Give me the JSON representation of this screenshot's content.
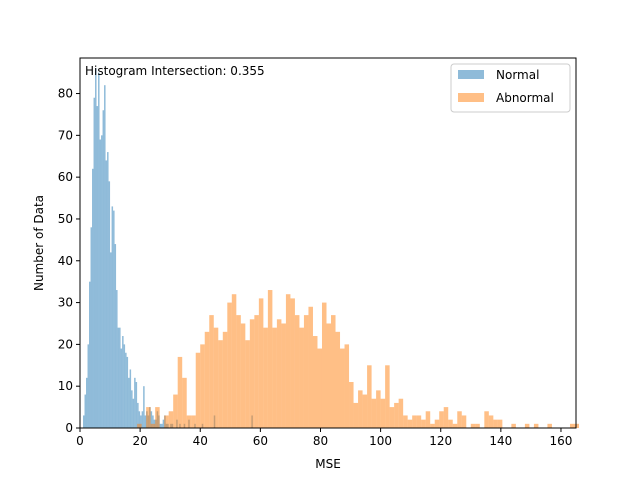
{
  "chart_data": {
    "type": "histogram",
    "annotation": "Histogram Intersection: 0.355",
    "xlabel": "MSE",
    "ylabel": "Number of Data",
    "xlim": [
      0,
      165
    ],
    "ylim": [
      0,
      88.5
    ],
    "xticks": [
      0,
      20,
      40,
      60,
      80,
      100,
      120,
      140,
      160
    ],
    "yticks": [
      0,
      10,
      20,
      30,
      40,
      50,
      60,
      70,
      80
    ],
    "grid": false,
    "legend_position": "top-right",
    "series": [
      {
        "name": "Normal",
        "color": "#1f77b4",
        "opacity": 0.5,
        "bin_start": 1.0,
        "bin_width": 0.5,
        "values": [
          3,
          8,
          12,
          20,
          35,
          48,
          62,
          79,
          86,
          77,
          85,
          69,
          70,
          76,
          82,
          64,
          66,
          59,
          42,
          53,
          52,
          44,
          33,
          24,
          24,
          19,
          22,
          20,
          18,
          17,
          12,
          14,
          9,
          7,
          12,
          11,
          6,
          4,
          3,
          4,
          10,
          3,
          4,
          3,
          5,
          4,
          3,
          2,
          2,
          4,
          3,
          1,
          1,
          2,
          3,
          1,
          1,
          0,
          1,
          1,
          0,
          0,
          2,
          0,
          1,
          0,
          0,
          1,
          0,
          0,
          2,
          0,
          0,
          0,
          1,
          0,
          0,
          0,
          0,
          1,
          0,
          0,
          0,
          0,
          0,
          0,
          0,
          3,
          0,
          0,
          0,
          0,
          0,
          0,
          0,
          0,
          0,
          0,
          0,
          0,
          0,
          0,
          0,
          0,
          0,
          0,
          0,
          0,
          0,
          0,
          0,
          0,
          3
        ]
      },
      {
        "name": "Abnormal",
        "color": "#ff7f0e",
        "opacity": 0.5,
        "bin_start": 1.0,
        "bin_width": 1.5,
        "values": [
          0,
          0,
          0,
          0,
          0,
          0,
          0,
          0,
          0,
          0,
          0,
          0,
          1,
          0,
          5,
          1,
          5,
          0,
          3,
          4,
          8,
          17,
          12,
          3,
          3,
          18,
          20,
          23,
          27,
          24,
          21,
          23,
          30,
          32,
          27,
          25,
          21,
          26,
          27,
          31,
          24,
          33,
          24,
          26,
          25,
          32,
          31,
          27,
          24,
          27,
          29,
          22,
          19,
          30,
          25,
          27,
          23,
          19,
          20,
          11,
          6,
          9,
          8,
          15,
          7,
          9,
          7,
          15,
          5,
          6,
          7,
          3,
          2,
          3,
          3,
          2,
          4,
          1,
          2,
          4,
          5,
          2,
          1,
          4,
          3,
          0,
          1,
          1,
          0,
          4,
          3,
          2,
          2,
          0,
          0,
          1,
          0,
          0,
          1,
          0,
          1,
          0,
          0,
          1,
          0,
          0,
          0,
          0,
          1,
          1
        ]
      }
    ]
  }
}
